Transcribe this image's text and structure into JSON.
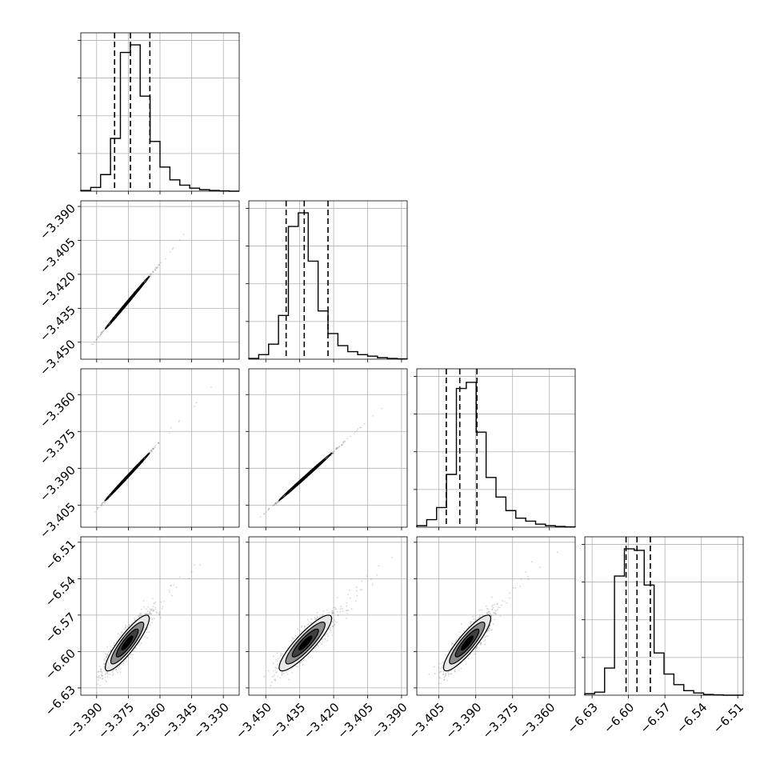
{
  "chart_data": {
    "type": "corner",
    "parameters": [
      {
        "range": [
          -3.3975,
          -3.3225
        ],
        "ticks": [
          -3.39,
          -3.375,
          -3.36,
          -3.345,
          -3.33
        ],
        "tick_labels": [
          "−3.390",
          "−3.375",
          "−3.360",
          "−3.345",
          "−3.330"
        ]
      },
      {
        "range": [
          -3.4575,
          -3.3875
        ],
        "ticks": [
          -3.45,
          -3.435,
          -3.42,
          -3.405,
          -3.39
        ],
        "tick_labels": [
          "−3.450",
          "−3.435",
          "−3.420",
          "−3.405",
          "−3.390"
        ]
      },
      {
        "range": [
          -3.414,
          -3.3495
        ],
        "ticks": [
          -3.405,
          -3.39,
          -3.375,
          -3.36
        ],
        "tick_labels": [
          "−3.405",
          "−3.390",
          "−3.375",
          "−3.360"
        ]
      },
      {
        "range": [
          -6.636,
          -6.5055
        ],
        "ticks": [
          -6.63,
          -6.6,
          -6.57,
          -6.54,
          -6.51
        ],
        "tick_labels": [
          "−6.63",
          "−6.60",
          "−6.57",
          "−6.54",
          "−6.51"
        ]
      }
    ],
    "histograms": [
      {
        "counts": [
          0.5,
          2.5,
          11,
          35,
          92,
          97,
          63,
          33,
          16,
          7.5,
          4,
          2,
          1,
          0.5,
          0.2,
          0
        ],
        "quantiles": [
          -3.3815,
          -3.374,
          -3.3648
        ]
      },
      {
        "counts": [
          0.5,
          3,
          10,
          29,
          88,
          97,
          65,
          32,
          17,
          9,
          5,
          3,
          2,
          1,
          0.5,
          0.2
        ],
        "quantiles": [
          -3.441,
          -3.433,
          -3.4225
        ]
      },
      {
        "counts": [
          1,
          5,
          13,
          35,
          92,
          96,
          63,
          33,
          20,
          11,
          6,
          4,
          2,
          1,
          0.5,
          0.2
        ],
        "quantiles": [
          -3.402,
          -3.3965,
          -3.3895
        ]
      },
      {
        "counts": [
          1,
          2,
          18,
          79,
          97,
          96,
          73,
          28,
          14,
          7,
          3,
          1.5,
          0.5,
          0.2,
          0,
          0
        ],
        "quantiles": [
          -6.602,
          -6.593,
          -6.582
        ]
      }
    ],
    "pairs": [
      {
        "xi": 0,
        "yi": 1,
        "mean": [
          -3.3755,
          -3.4325
        ],
        "sd": [
          0.0052,
          0.0058
        ],
        "rho": 0.998
      },
      {
        "xi": 0,
        "yi": 2,
        "mean": [
          -3.3755,
          -3.3935
        ],
        "sd": [
          0.0052,
          0.0048
        ],
        "rho": 0.998
      },
      {
        "xi": 1,
        "yi": 2,
        "mean": [
          -3.4325,
          -3.3935
        ],
        "sd": [
          0.0058,
          0.0048
        ],
        "rho": 0.998
      },
      {
        "xi": 0,
        "yi": 3,
        "mean": [
          -3.3755,
          -6.593
        ],
        "sd": [
          0.0052,
          0.0115
        ],
        "rho": 0.88
      },
      {
        "xi": 1,
        "yi": 3,
        "mean": [
          -3.4325,
          -6.593
        ],
        "sd": [
          0.0058,
          0.0115
        ],
        "rho": 0.88
      },
      {
        "xi": 2,
        "yi": 3,
        "mean": [
          -3.3935,
          -6.593
        ],
        "sd": [
          0.0048,
          0.0115
        ],
        "rho": 0.88
      }
    ],
    "hist_ylim": [
      0,
      105
    ],
    "contour_levels_sigma": [
      0.5,
      1.0,
      1.5,
      2.0
    ],
    "grid": true,
    "colors": {
      "line": "#000000",
      "grid": "#b0b0b0",
      "points": "#6e6e6e"
    }
  }
}
